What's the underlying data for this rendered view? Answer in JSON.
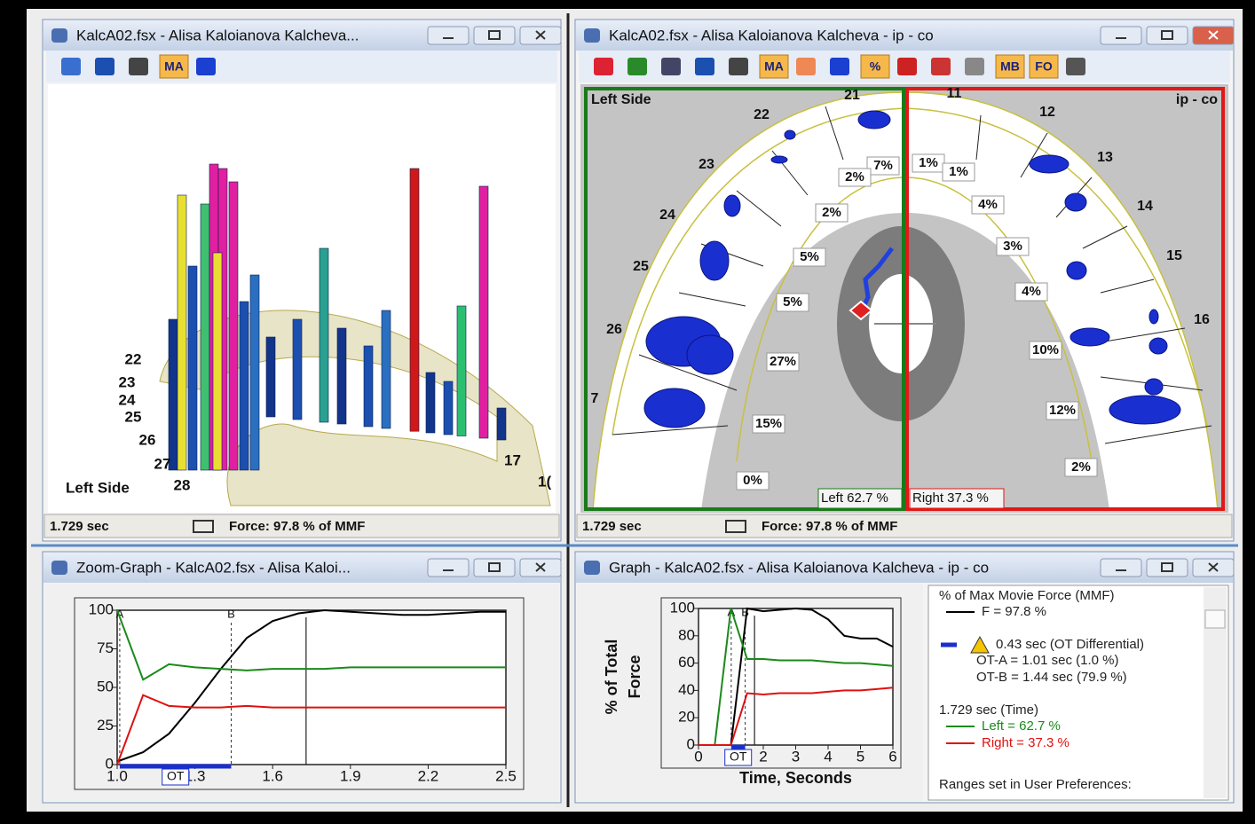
{
  "windows": {
    "top_left": {
      "title": "KalcA02.fsx - Alisa Kaloianova Kalcheva...",
      "toolbar": [
        "MA"
      ],
      "row_labels": [
        "22",
        "23",
        "24",
        "25",
        "26",
        "27",
        "28"
      ],
      "side_label": "Left Side",
      "right_labels": [
        "17",
        "1("
      ],
      "status": {
        "time": "1.729 sec",
        "force": "Force: 97.8 % of MMF"
      }
    },
    "top_right": {
      "title": "KalcA02.fsx - Alisa Kaloianova Kalcheva - ip - co",
      "toolbar": [
        "MA",
        "%",
        "MB",
        "FO"
      ],
      "side_label": "Left Side",
      "view_label": "ip - co",
      "teeth_left": [
        "21",
        "22",
        "23",
        "24",
        "25",
        "26",
        "7"
      ],
      "teeth_right": [
        "11",
        "12",
        "13",
        "14",
        "15",
        "16"
      ],
      "pct_left": [
        "7%",
        "2%",
        "2%",
        "5%",
        "5%",
        "27%",
        "15%",
        "0%"
      ],
      "pct_right": [
        "1%",
        "1%",
        "4%",
        "3%",
        "4%",
        "10%",
        "12%",
        "2%"
      ],
      "left_total": "Left 62.7 %",
      "right_total": "Right 37.3 %",
      "status": {
        "time": "1.729 sec",
        "force": "Force: 97.8 % of MMF"
      }
    },
    "bottom_left": {
      "title": "Zoom-Graph - KalcA02.fsx - Alisa Kaloi...",
      "ot_label": "OT"
    },
    "bottom_right": {
      "title": "Graph - KalcA02.fsx - Alisa Kaloianova Kalcheva - ip - co",
      "ot_label": "OT",
      "legend": [
        "% of Max Movie Force (MMF)",
        "F = 97.8 %",
        "0.43 sec (OT Differential)",
        "OT-A = 1.01 sec (1.0 %)",
        "OT-B = 1.44 sec (79.9 %)",
        "1.729 sec (Time)",
        "Left = 62.7 %",
        "Right = 37.3 %",
        "Ranges set in User Preferences:"
      ]
    }
  },
  "chart_data": [
    {
      "type": "line",
      "x": [
        1.0,
        1.1,
        1.2,
        1.3,
        1.4,
        1.5,
        1.6,
        1.7,
        1.8,
        1.9,
        2.0,
        2.1,
        2.2,
        2.3,
        2.4,
        2.5
      ],
      "series": [
        {
          "name": "F",
          "color": "#000000",
          "values": [
            2,
            8,
            20,
            40,
            62,
            82,
            93,
            98,
            100,
            99,
            98,
            97,
            97,
            98,
            99,
            99
          ]
        },
        {
          "name": "Left",
          "color": "#1a8a1a",
          "values": [
            100,
            55,
            65,
            63,
            62,
            61,
            62,
            62,
            62,
            63,
            63,
            63,
            63,
            63,
            63,
            63
          ]
        },
        {
          "name": "Right",
          "color": "#e01010",
          "values": [
            0,
            45,
            38,
            37,
            37,
            38,
            37,
            37,
            37,
            37,
            37,
            37,
            37,
            37,
            37,
            37
          ]
        }
      ],
      "markers": [
        {
          "label": "A",
          "x": 1.01
        },
        {
          "label": "B",
          "x": 1.44
        }
      ],
      "cursor": 1.729,
      "xlim": [
        1.0,
        2.5
      ],
      "xticks": [
        {
          "value": 1.0,
          "label": "1.0"
        },
        1.3,
        1.6,
        1.9,
        2.2,
        2.5
      ],
      "ylim": [
        0,
        100
      ],
      "yticks": [
        0,
        25,
        50,
        75,
        100
      ]
    },
    {
      "type": "line",
      "x": [
        0,
        0.5,
        1.0,
        1.5,
        2.0,
        2.5,
        3.0,
        3.5,
        4.0,
        4.5,
        5.0,
        5.5,
        6.0
      ],
      "series": [
        {
          "name": "F",
          "color": "#000000",
          "values": [
            0,
            0,
            0,
            100,
            98,
            99,
            100,
            99,
            92,
            80,
            78,
            78,
            72
          ]
        },
        {
          "name": "Left",
          "color": "#1a8a1a",
          "values": [
            0,
            0,
            100,
            63,
            63,
            62,
            62,
            62,
            61,
            60,
            60,
            59,
            58
          ]
        },
        {
          "name": "Right",
          "color": "#e01010",
          "values": [
            0,
            0,
            0,
            38,
            37,
            38,
            38,
            38,
            39,
            40,
            40,
            41,
            42
          ]
        }
      ],
      "markers": [
        {
          "label": "A",
          "x": 1.01
        },
        {
          "label": "B",
          "x": 1.44
        }
      ],
      "cursor": 1.729,
      "xlabel": "Time, Seconds",
      "ylabel": [
        "% of Total",
        "Force"
      ],
      "xlim": [
        0,
        6
      ],
      "xticks": [
        0,
        2,
        3,
        4,
        5,
        6
      ],
      "ylim": [
        0,
        100
      ],
      "yticks": [
        0,
        20,
        40,
        60,
        80,
        100
      ]
    }
  ]
}
